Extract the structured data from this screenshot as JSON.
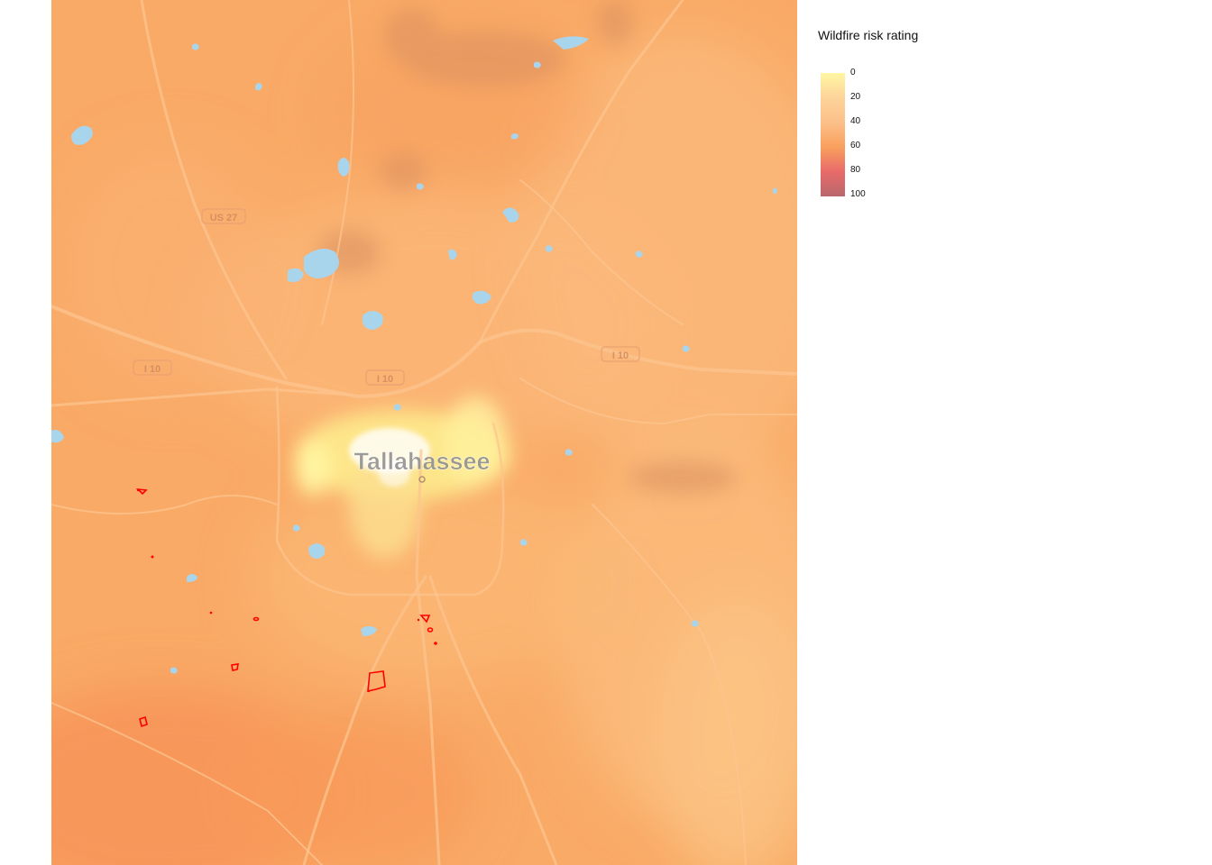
{
  "legend": {
    "title": "Wildfire risk rating",
    "ticks": [
      "0",
      "20",
      "40",
      "60",
      "80",
      "100"
    ],
    "colors": [
      "#fff6a3",
      "#fdd49a",
      "#fcc08a",
      "#f9a05d",
      "#e86a6a",
      "#b8686c"
    ]
  },
  "map": {
    "city_label": "Tallahassee",
    "road_labels": [
      "US 27",
      "I 10",
      "I 10",
      "I 10"
    ],
    "base_color": "#f9aa66",
    "water_color": "#a8d4ec",
    "fire_perimeter_color": "#ff0000"
  }
}
